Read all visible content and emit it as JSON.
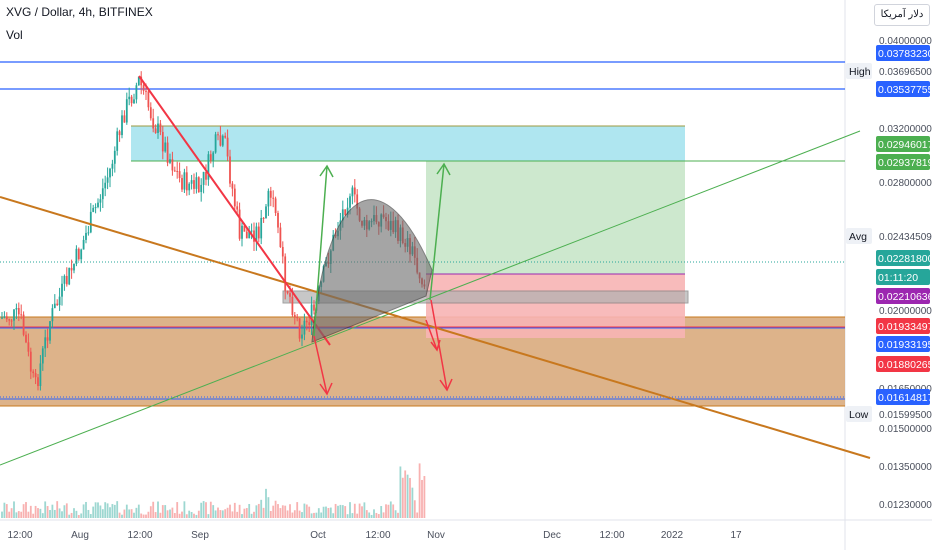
{
  "header": {
    "symbol_line": "XVG / Dollar, 4h, BITFINEX",
    "indicator": "Vol",
    "currency_button": "دلار آمریکا"
  },
  "chart_data": {
    "type": "candlestick",
    "ylim": [
      0.0118,
      0.0408
    ],
    "y_ticks": [
      "0.04000000",
      "0.03696500",
      "0.03200000",
      "0.02800000",
      "0.02434509",
      "0.02000000",
      "0.01650000",
      "0.01599500",
      "0.01500000",
      "0.01350000",
      "0.01230000"
    ],
    "x_ticks": [
      "12:00",
      "Aug",
      "12:00",
      "Sep",
      "Oct",
      "12:00",
      "Nov",
      "Dec",
      "12:00",
      "2022",
      "17"
    ],
    "price_badges": [
      {
        "value": "0.03783230",
        "color": "#2962ff"
      },
      {
        "value": "0.03537755",
        "color": "#2962ff"
      },
      {
        "value": "0.02946017",
        "color": "#4caf50"
      },
      {
        "value": "0.02937819",
        "color": "#4caf50"
      },
      {
        "value": "0.02281800",
        "color": "#26a69a"
      },
      {
        "value": "01:11:20",
        "color": "#26a69a"
      },
      {
        "value": "0.02210636",
        "color": "#9c27b0"
      },
      {
        "value": "0.01933497",
        "color": "#f23645"
      },
      {
        "value": "0.01933195",
        "color": "#2962ff"
      },
      {
        "value": "0.01880265",
        "color": "#f23645"
      },
      {
        "value": "0.01614817",
        "color": "#2962ff"
      }
    ],
    "tags": [
      "High",
      "Avg",
      "Low"
    ],
    "colors": {
      "up": "#26a69a",
      "down": "#ef5350",
      "blue": "#2962ff",
      "orange": "#c8781e",
      "green": "#4caf50",
      "red": "#f23645"
    }
  }
}
